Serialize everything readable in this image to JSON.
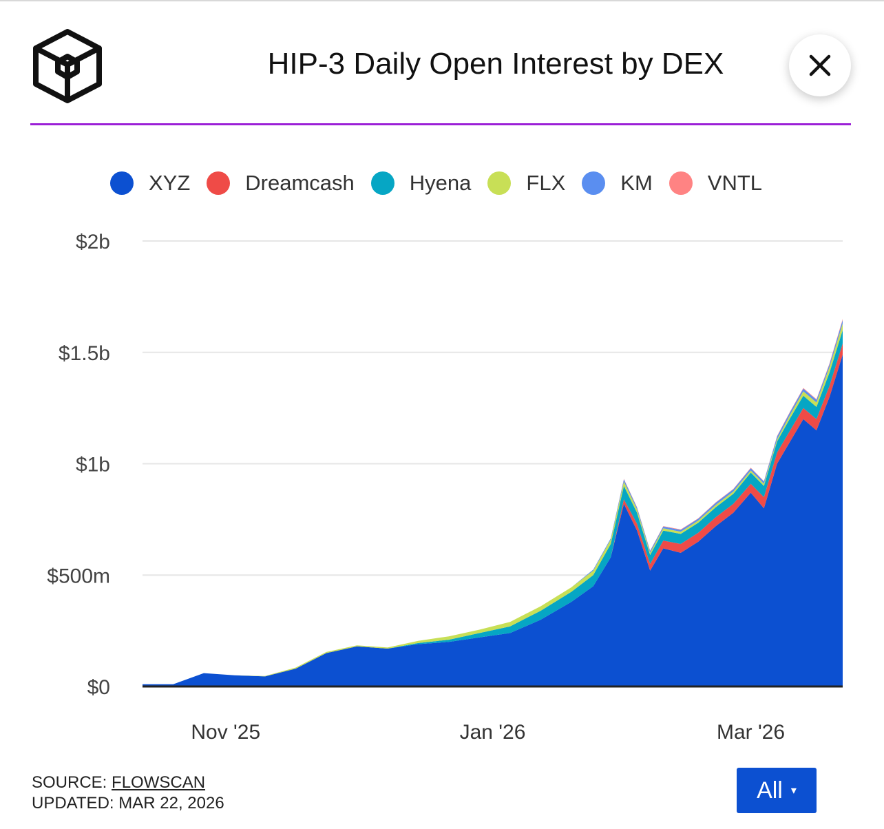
{
  "header": {
    "title": "HIP-3 Daily Open Interest by DEX",
    "accent_color": "#9b1fd6",
    "logo_icon": "cube-logo-icon",
    "close_icon": "close-icon"
  },
  "legend": [
    {
      "name": "XYZ",
      "color": "#0c50d1"
    },
    {
      "name": "Dreamcash",
      "color": "#ef4b47"
    },
    {
      "name": "Hyena",
      "color": "#06a6c4"
    },
    {
      "name": "FLX",
      "color": "#c8df56"
    },
    {
      "name": "KM",
      "color": "#5a8ef0"
    },
    {
      "name": "VNTL",
      "color": "#ff8383"
    }
  ],
  "footer": {
    "source_label": "SOURCE:",
    "source_name": "FLOWSCAN",
    "updated_label": "UPDATED:",
    "updated_date": "MAR 22, 2026"
  },
  "range_button": {
    "label": "All",
    "caret": "▾",
    "color": "#0c50d1"
  },
  "chart_data": {
    "type": "area",
    "stacked": true,
    "title": "HIP-3 Daily Open Interest by DEX",
    "xlabel": "",
    "ylabel": "",
    "y_unit": "USD",
    "ylim": [
      0,
      2000000000
    ],
    "y_ticks": [
      0,
      500000000,
      1000000000,
      1500000000,
      2000000000
    ],
    "y_tick_labels": [
      "$0",
      "$500m",
      "$1b",
      "$1.5b",
      "$2b"
    ],
    "x_range": [
      "2025-10-13",
      "2026-03-22"
    ],
    "x_ticks": [
      "2025-11-01",
      "2026-01-01",
      "2026-03-01"
    ],
    "x_tick_labels": [
      "Nov '25",
      "Jan '26",
      "Mar '26"
    ],
    "grid": true,
    "legend_position": "top",
    "x": [
      "2025-10-13",
      "2025-10-20",
      "2025-10-27",
      "2025-11-03",
      "2025-11-10",
      "2025-11-17",
      "2025-11-24",
      "2025-12-01",
      "2025-12-08",
      "2025-12-15",
      "2025-12-22",
      "2025-12-29",
      "2026-01-05",
      "2026-01-12",
      "2026-01-19",
      "2026-01-24",
      "2026-01-28",
      "2026-01-31",
      "2026-02-03",
      "2026-02-06",
      "2026-02-09",
      "2026-02-13",
      "2026-02-17",
      "2026-02-21",
      "2026-02-25",
      "2026-03-01",
      "2026-03-04",
      "2026-03-07",
      "2026-03-10",
      "2026-03-13",
      "2026-03-16",
      "2026-03-19",
      "2026-03-22"
    ],
    "series": [
      {
        "name": "XYZ",
        "values": [
          10000000,
          10000000,
          60000000,
          50000000,
          45000000,
          80000000,
          150000000,
          180000000,
          170000000,
          190000000,
          200000000,
          220000000,
          240000000,
          300000000,
          380000000,
          450000000,
          580000000,
          820000000,
          700000000,
          520000000,
          620000000,
          600000000,
          650000000,
          720000000,
          780000000,
          870000000,
          800000000,
          1000000000,
          1100000000,
          1200000000,
          1150000000,
          1300000000,
          1490000000
        ]
      },
      {
        "name": "Dreamcash",
        "values": [
          0,
          0,
          0,
          0,
          0,
          0,
          0,
          0,
          0,
          0,
          0,
          0,
          0,
          0,
          0,
          0,
          0,
          20000000,
          30000000,
          30000000,
          35000000,
          40000000,
          40000000,
          40000000,
          40000000,
          40000000,
          50000000,
          50000000,
          50000000,
          50000000,
          50000000,
          50000000,
          50000000
        ]
      },
      {
        "name": "Hyena",
        "values": [
          0,
          0,
          0,
          0,
          0,
          0,
          0,
          0,
          0,
          5000000,
          10000000,
          20000000,
          30000000,
          40000000,
          45000000,
          50000000,
          60000000,
          60000000,
          50000000,
          40000000,
          45000000,
          45000000,
          45000000,
          45000000,
          45000000,
          50000000,
          50000000,
          50000000,
          55000000,
          55000000,
          55000000,
          60000000,
          60000000
        ]
      },
      {
        "name": "FLX",
        "values": [
          0,
          0,
          0,
          0,
          2000000,
          5000000,
          5000000,
          5000000,
          5000000,
          10000000,
          15000000,
          15000000,
          20000000,
          20000000,
          20000000,
          20000000,
          20000000,
          20000000,
          15000000,
          10000000,
          10000000,
          10000000,
          10000000,
          10000000,
          10000000,
          10000000,
          10000000,
          10000000,
          15000000,
          20000000,
          20000000,
          25000000,
          30000000
        ]
      },
      {
        "name": "KM",
        "values": [
          0,
          0,
          0,
          0,
          0,
          0,
          0,
          0,
          0,
          0,
          0,
          0,
          0,
          0,
          0,
          5000000,
          5000000,
          10000000,
          8000000,
          8000000,
          8000000,
          8000000,
          8000000,
          10000000,
          10000000,
          10000000,
          10000000,
          12000000,
          12000000,
          12000000,
          12000000,
          12000000,
          15000000
        ]
      },
      {
        "name": "VNTL",
        "values": [
          0,
          0,
          0,
          0,
          0,
          0,
          0,
          0,
          0,
          0,
          0,
          0,
          0,
          0,
          0,
          0,
          0,
          2000000,
          2000000,
          2000000,
          2000000,
          2000000,
          2000000,
          2000000,
          2000000,
          2000000,
          2000000,
          3000000,
          3000000,
          3000000,
          3000000,
          4000000,
          5000000
        ]
      }
    ]
  }
}
